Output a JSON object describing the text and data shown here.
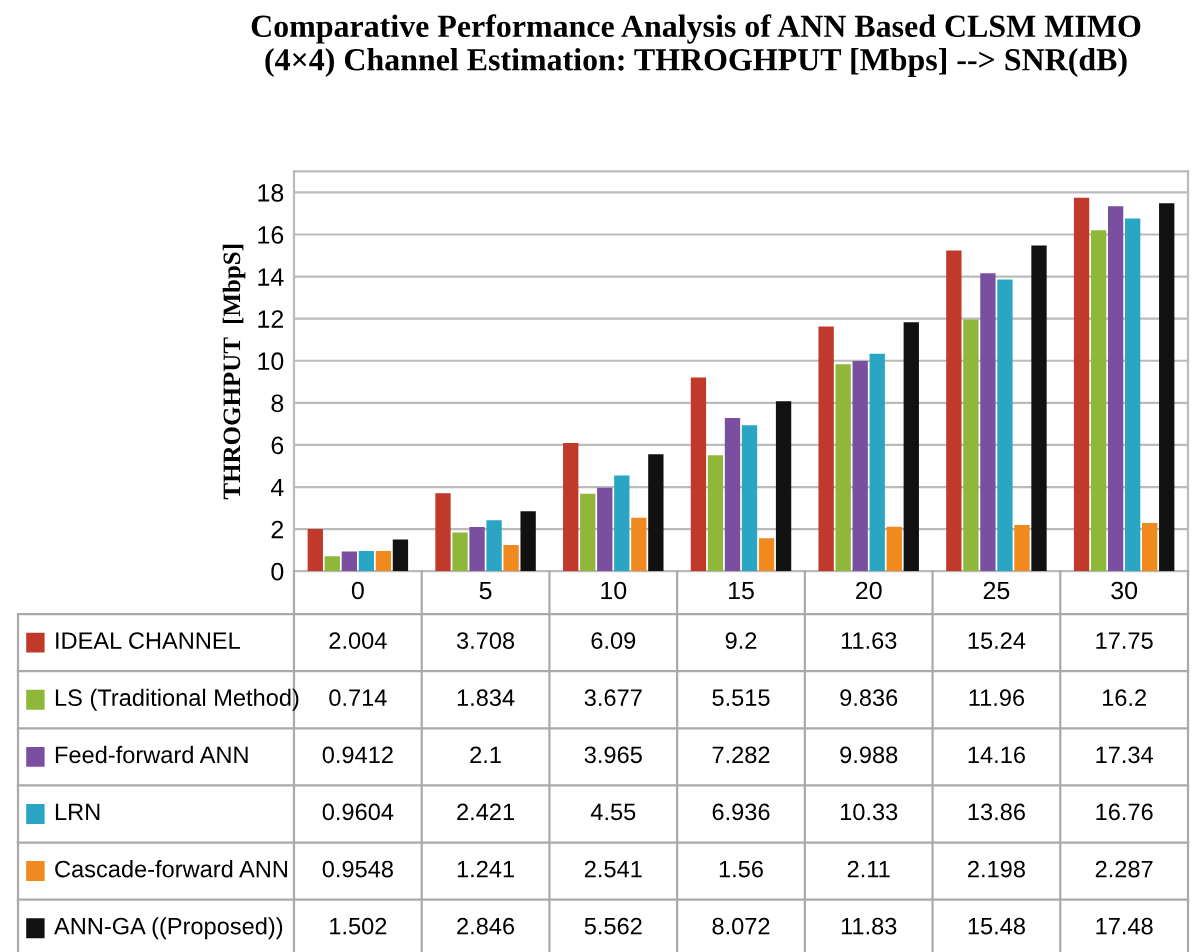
{
  "chart_data": {
    "type": "bar",
    "title": "Comparative Performance Analysis of ANN Based CLSM MIMO\n(4×4) Channel Estimation: THROGHPUT [Mbps] --> SNR(dB)",
    "ylabel": "THROGHPUT  [MbpS]",
    "categories": [
      "0",
      "5",
      "10",
      "15",
      "20",
      "25",
      "30"
    ],
    "series": [
      {
        "name": "IDEAL CHANNEL",
        "color": "#c0392b",
        "values": [
          2.004,
          3.708,
          6.09,
          9.2,
          11.63,
          15.24,
          17.75
        ]
      },
      {
        "name": "LS (Traditional Method)",
        "color": "#8fb83a",
        "values": [
          0.714,
          1.834,
          3.677,
          5.515,
          9.836,
          11.96,
          16.2
        ]
      },
      {
        "name": "Feed-forward ANN",
        "color": "#7b4fa0",
        "values": [
          0.9412,
          2.1,
          3.965,
          7.282,
          9.988,
          14.16,
          17.34
        ]
      },
      {
        "name": "LRN",
        "color": "#2aa6c4",
        "values": [
          0.9604,
          2.421,
          4.55,
          6.936,
          10.33,
          13.86,
          16.76
        ]
      },
      {
        "name": "Cascade-forward ANN",
        "color": "#f0891e",
        "values": [
          0.9548,
          1.241,
          2.541,
          1.56,
          2.11,
          2.198,
          2.287
        ]
      },
      {
        "name": "ANN-GA ((Proposed))",
        "color": "#111111",
        "values": [
          1.502,
          2.846,
          5.562,
          8.072,
          11.83,
          15.48,
          17.48
        ]
      }
    ],
    "ylim": [
      0,
      19
    ],
    "yticks": [
      0,
      2,
      4,
      6,
      8,
      10,
      12,
      14,
      16,
      18
    ],
    "grid": "y",
    "legend": "bottom",
    "data_labels": true
  }
}
